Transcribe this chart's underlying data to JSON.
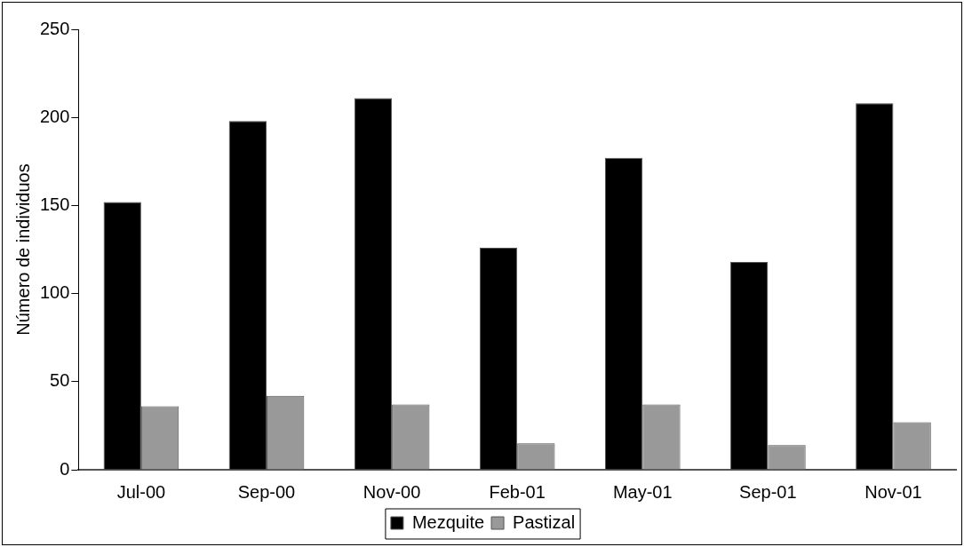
{
  "chart_data": {
    "type": "bar",
    "categories": [
      "Jul-00",
      "Sep-00",
      "Nov-00",
      "Feb-01",
      "May-01",
      "Sep-01",
      "Nov-01"
    ],
    "series": [
      {
        "name": "Mezquite",
        "color": "#000000",
        "values": [
          152,
          198,
          211,
          126,
          177,
          118,
          208
        ]
      },
      {
        "name": "Pastizal",
        "color": "#999999",
        "values": [
          36,
          42,
          37,
          15,
          37,
          14,
          27
        ]
      }
    ],
    "ylabel": "Número de individuos",
    "ylim": [
      0,
      250
    ],
    "yticks": [
      0,
      50,
      100,
      150,
      200,
      250
    ],
    "grid": false,
    "legend": "bottom"
  }
}
